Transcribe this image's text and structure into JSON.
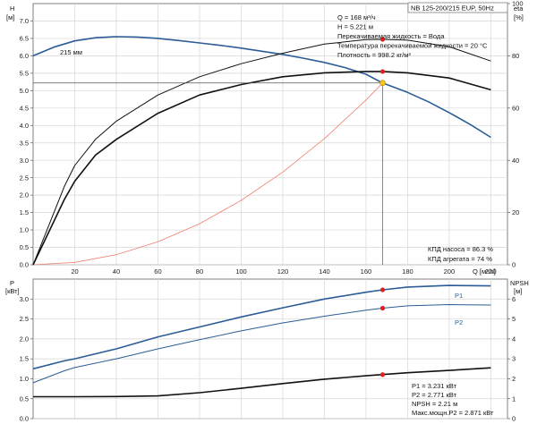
{
  "chart_data": [
    {
      "type": "line",
      "title": "NB 125-200/215 EUP, 50Hz",
      "xlabel": "Q [м³/ч]",
      "ylabel": [
        "H",
        "[м]"
      ],
      "y2label": [
        "eta",
        "[%]"
      ],
      "xlim": [
        0,
        228
      ],
      "ylim": [
        0,
        7.5
      ],
      "y2lim": [
        0,
        100
      ],
      "xticks": [
        20,
        40,
        60,
        80,
        100,
        120,
        140,
        160,
        180,
        200,
        220
      ],
      "yticks": [
        "0.0",
        "0.5",
        "1.0",
        "1.5",
        "2.0",
        "2.5",
        "3.0",
        "3.5",
        "4.0",
        "4.5",
        "5.0",
        "5.5",
        "6.0",
        "6.5",
        "7.0"
      ],
      "y2ticks": [
        "0",
        "20",
        "40",
        "60",
        "80",
        "100"
      ],
      "curve_label": "215 мм",
      "series": [
        {
          "id": "H",
          "axis": "left",
          "color": "#2b5c96",
          "x": [
            0,
            10,
            20,
            30,
            40,
            50,
            60,
            70,
            80,
            90,
            100,
            110,
            120,
            130,
            140,
            150,
            160,
            168,
            180,
            190,
            200,
            210,
            220
          ],
          "values": [
            6.0,
            6.25,
            6.43,
            6.52,
            6.55,
            6.54,
            6.5,
            6.44,
            6.37,
            6.3,
            6.22,
            6.13,
            6.04,
            5.93,
            5.81,
            5.66,
            5.47,
            5.22,
            4.95,
            4.68,
            4.37,
            4.03,
            3.66
          ]
        },
        {
          "id": "system",
          "axis": "left",
          "color": "#f08070",
          "x": [
            0,
            20,
            40,
            60,
            80,
            100,
            120,
            140,
            160,
            168
          ],
          "values": [
            0,
            0.07,
            0.29,
            0.66,
            1.18,
            1.85,
            2.66,
            3.62,
            4.73,
            5.22
          ]
        },
        {
          "id": "eta_pump",
          "axis": "right",
          "color": "#111111",
          "x": [
            0,
            15,
            20,
            30,
            40,
            60,
            80,
            100,
            120,
            140,
            160,
            168,
            180,
            200,
            220
          ],
          "values": [
            0,
            30,
            38,
            48,
            55,
            65,
            72,
            77,
            81,
            84.5,
            86.2,
            86.3,
            86,
            83.5,
            78
          ]
        },
        {
          "id": "eta_unit",
          "axis": "right",
          "color": "#111111",
          "x": [
            0,
            15,
            20,
            30,
            40,
            60,
            80,
            100,
            120,
            140,
            160,
            168,
            180,
            200,
            220
          ],
          "values": [
            0,
            25,
            32,
            42,
            48,
            58,
            65,
            69,
            72,
            73.5,
            74,
            74,
            73.5,
            71.5,
            67
          ]
        }
      ],
      "duty_point": {
        "Q": 168,
        "H": 5.221,
        "eta_pump": 86.3,
        "eta_unit": 74
      },
      "info_lines": [
        "Q = 168 м³/ч",
        "H = 5.221 м",
        "Перекачиваемая жидкость = Вода",
        "Температура перекачиваемой жидкости = 20 °C",
        "Плотность = 998.2 кг/м³"
      ],
      "eff_lines": [
        "КПД насоса = 86.3 %",
        "КПД агрегата = 74 %"
      ]
    },
    {
      "type": "line",
      "ylabel": [
        "P",
        "[кВт]"
      ],
      "y2label": [
        "NPSH",
        "[м]"
      ],
      "xlim": [
        0,
        228
      ],
      "ylim": [
        0,
        3.5
      ],
      "y2lim": [
        0,
        7
      ],
      "yticks": [
        "0.0",
        "0.5",
        "1.0",
        "1.5",
        "2.0",
        "2.5",
        "3.0"
      ],
      "y2ticks": [
        "0",
        "1",
        "2",
        "3",
        "4",
        "5",
        "6"
      ],
      "series": [
        {
          "id": "P1",
          "name": "P1",
          "axis": "left",
          "color": "#2b5c96",
          "x": [
            0,
            15,
            20,
            40,
            60,
            80,
            100,
            120,
            140,
            160,
            168,
            180,
            200,
            220
          ],
          "values": [
            1.25,
            1.45,
            1.5,
            1.75,
            2.05,
            2.3,
            2.55,
            2.78,
            3.0,
            3.17,
            3.231,
            3.3,
            3.34,
            3.33
          ]
        },
        {
          "id": "P2",
          "name": "P2",
          "axis": "left",
          "color": "#2b5c96",
          "x": [
            0,
            15,
            20,
            40,
            60,
            80,
            100,
            120,
            140,
            160,
            168,
            180,
            200,
            220
          ],
          "values": [
            0.9,
            1.2,
            1.28,
            1.5,
            1.75,
            1.98,
            2.2,
            2.4,
            2.57,
            2.72,
            2.771,
            2.83,
            2.86,
            2.85
          ]
        },
        {
          "id": "NPSH",
          "axis": "right",
          "color": "#111111",
          "x": [
            0,
            15,
            20,
            40,
            60,
            80,
            100,
            120,
            140,
            160,
            168,
            180,
            200,
            220
          ],
          "values": [
            1.1,
            1.1,
            1.1,
            1.11,
            1.14,
            1.3,
            1.52,
            1.76,
            1.98,
            2.15,
            2.21,
            2.3,
            2.42,
            2.55
          ]
        }
      ],
      "duty_point": {
        "Q": 168,
        "P1": 3.231,
        "P2": 2.771,
        "NPSH": 2.21
      },
      "info_lines": [
        "P1 = 3.231 кВт",
        "P2 = 2.771 кВт",
        "NPSH = 2.21 м",
        "Макс.мощн.P2 = 2.871 кВт"
      ]
    }
  ]
}
